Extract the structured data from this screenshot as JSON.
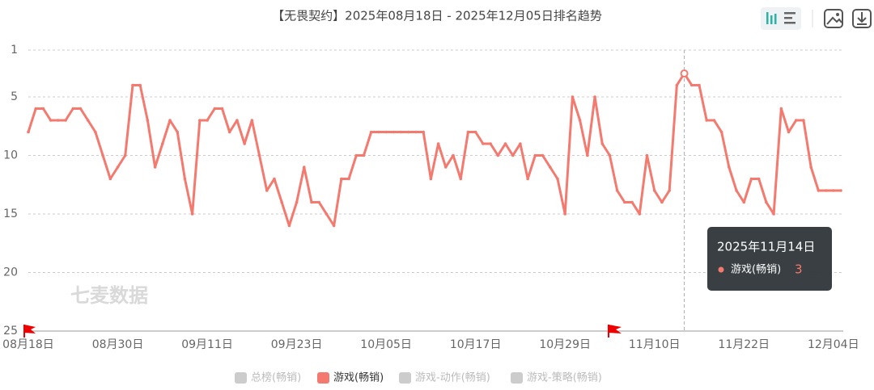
{
  "chart_data": {
    "type": "line",
    "title": "【无畏契约】2025年08月18日 - 2025年12月05日排名趋势",
    "watermark": "七麦数据",
    "categories": [
      "08月18日",
      null,
      null,
      null,
      null,
      null,
      null,
      null,
      null,
      null,
      null,
      null,
      "08月30日",
      null,
      null,
      null,
      null,
      null,
      null,
      null,
      null,
      null,
      null,
      null,
      "09月11日",
      null,
      null,
      null,
      null,
      null,
      null,
      null,
      null,
      null,
      null,
      null,
      "09月23日",
      null,
      null,
      null,
      null,
      null,
      null,
      null,
      null,
      null,
      null,
      null,
      "10月05日",
      null,
      null,
      null,
      null,
      null,
      null,
      null,
      null,
      null,
      null,
      null,
      "10月17日",
      null,
      null,
      null,
      null,
      null,
      null,
      null,
      null,
      null,
      null,
      null,
      "10月29日",
      null,
      null,
      null,
      null,
      null,
      null,
      null,
      null,
      null,
      null,
      null,
      "11月10日",
      null,
      null,
      null,
      null,
      null,
      null,
      null,
      null,
      null,
      null,
      null,
      "11月22日",
      null,
      null,
      null,
      null,
      null,
      null,
      null,
      null,
      null,
      null,
      null,
      "12月04日",
      null
    ],
    "series": [
      {
        "name": "游戏(畅销)",
        "color": "#f47a6f",
        "values": [
          8,
          6,
          6,
          7,
          7,
          7,
          6,
          6,
          7,
          8,
          10,
          12,
          11,
          10,
          4,
          4,
          7,
          11,
          9,
          7,
          8,
          12,
          15,
          7,
          7,
          6,
          6,
          8,
          7,
          9,
          7,
          10,
          13,
          12,
          14,
          16,
          14,
          11,
          14,
          14,
          15,
          16,
          12,
          12,
          10,
          10,
          8,
          8,
          8,
          8,
          8,
          8,
          8,
          8,
          12,
          9,
          11,
          10,
          12,
          8,
          8,
          9,
          9,
          10,
          9,
          10,
          9,
          12,
          10,
          10,
          11,
          12,
          15,
          5,
          7,
          10,
          5,
          9,
          10,
          13,
          14,
          14,
          15,
          10,
          13,
          14,
          13,
          4,
          3,
          4,
          4,
          7,
          7,
          8,
          11,
          13,
          14,
          12,
          12,
          14,
          15,
          6,
          8,
          7,
          7,
          11,
          13,
          13,
          13,
          13
        ]
      }
    ],
    "hidden_series": [
      {
        "name": "总榜(畅销)"
      },
      {
        "name": "游戏-动作(畅销)"
      },
      {
        "name": "游戏-策略(畅销)"
      }
    ],
    "hidden_color": "#cccccc",
    "ylim": [
      1,
      25
    ],
    "yticks": [
      1,
      5,
      10,
      15,
      20,
      25
    ],
    "inverse_y": true,
    "grid": true,
    "tooltip": {
      "date": "2025年11月14日"
    }
  }
}
